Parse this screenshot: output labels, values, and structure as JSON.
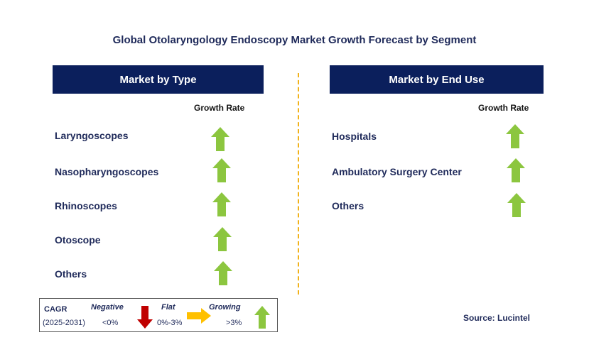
{
  "title": "Global Otolaryngology Endoscopy Market Growth Forecast by Segment",
  "left_panel": {
    "header": "Market by Type",
    "growth_label": "Growth Rate",
    "items": [
      {
        "label": "Laryngoscopes",
        "trend": "growing"
      },
      {
        "label": "Nasopharyngoscopes",
        "trend": "growing"
      },
      {
        "label": "Rhinoscopes",
        "trend": "growing"
      },
      {
        "label": "Otoscope",
        "trend": "growing"
      },
      {
        "label": "Others",
        "trend": "growing"
      }
    ]
  },
  "right_panel": {
    "header": "Market by End Use",
    "growth_label": "Growth Rate",
    "items": [
      {
        "label": "Hospitals",
        "trend": "growing"
      },
      {
        "label": "Ambulatory Surgery Center",
        "trend": "growing"
      },
      {
        "label": "Others",
        "trend": "growing"
      }
    ]
  },
  "legend": {
    "cagr_label": "CAGR",
    "period": "(2025-2031)",
    "negative_label": "Negative",
    "negative_range": "<0%",
    "flat_label": "Flat",
    "flat_range": "0%-3%",
    "growing_label": "Growing",
    "growing_range": ">3%"
  },
  "source": "Source: Lucintel",
  "colors": {
    "header_bg": "#0b1f5c",
    "text": "#1f2a5a",
    "growing": "#8cc63f",
    "flat": "#ffc000",
    "negative": "#c00000",
    "divider": "#f2b21a"
  }
}
